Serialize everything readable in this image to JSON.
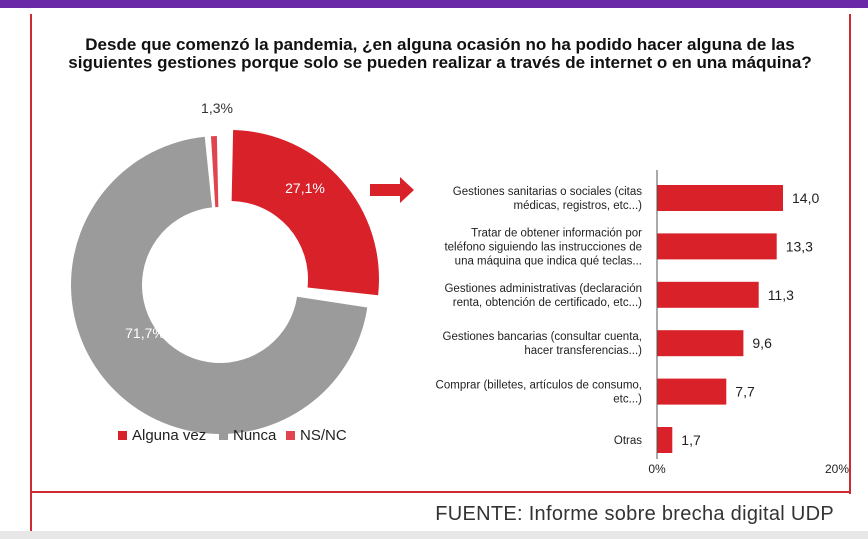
{
  "title_lines": [
    "Desde que comenzó la pandemia, ¿en alguna ocasión no ha podido hacer alguna de las",
    "siguientes gestiones porque solo se pueden realizar a través de internet o en una máquina?"
  ],
  "source": "FUENTE: Informe sobre brecha digital UDP",
  "colors": {
    "accent": "#d9212a",
    "gray": "#9b9b9b",
    "nsnc": "#e0444f",
    "frame": "#cf2a33"
  },
  "chart_data": [
    {
      "type": "pie",
      "donut": true,
      "title": "",
      "slices": [
        {
          "label": "Alguna vez",
          "value": 27.1,
          "value_label": "27,1%",
          "color": "#d9212a"
        },
        {
          "label": "Nunca",
          "value": 71.7,
          "value_label": "71,7%",
          "color": "#9b9b9b"
        },
        {
          "label": "NS/NC",
          "value": 1.3,
          "value_label": "1,3%",
          "color": "#e0444f"
        }
      ],
      "legend_position": "bottom"
    },
    {
      "type": "bar",
      "orientation": "horizontal",
      "title": "",
      "categories": [
        [
          "Gestiones sanitarias o sociales (citas",
          "médicas, registros, etc...)"
        ],
        [
          "Tratar de obtener información por",
          "teléfono siguiendo las instrucciones de",
          "una máquina que indica qué teclas..."
        ],
        [
          "Gestiones administrativas (declaración",
          "renta, obtención de certificado, etc...)"
        ],
        [
          "Gestiones bancarias (consultar cuenta,",
          "hacer transferencias...)"
        ],
        [
          "Comprar (billetes, artículos de consumo,",
          "etc...)"
        ],
        [
          "Otras"
        ]
      ],
      "values": [
        14.0,
        13.3,
        11.3,
        9.6,
        7.7,
        1.7
      ],
      "value_labels": [
        "14,0",
        "13,3",
        "11,3",
        "9,6",
        "7,7",
        "1,7"
      ],
      "xlim": [
        0,
        20
      ],
      "x_tick_labels": [
        "0%",
        "20%"
      ],
      "grid": false
    }
  ]
}
